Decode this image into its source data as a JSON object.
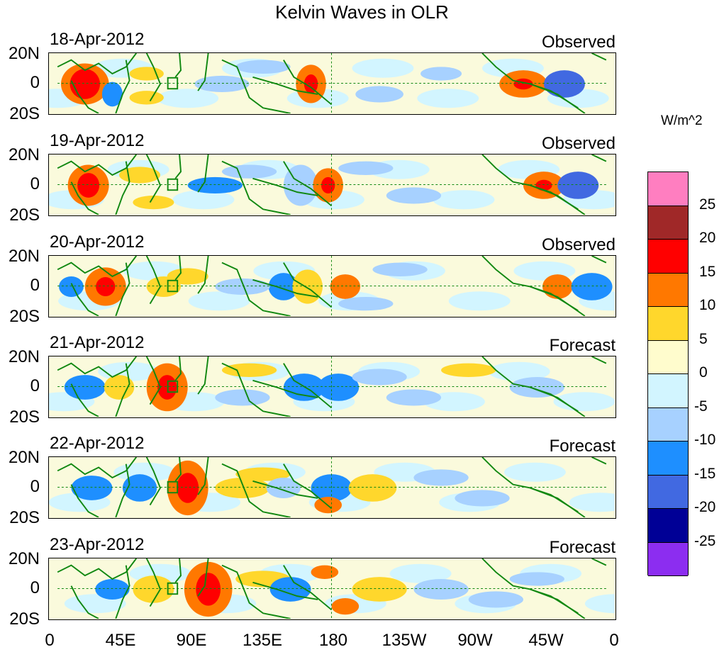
{
  "title": "Kelvin Waves in OLR",
  "units": "W/m^2",
  "lat_labels": [
    "20N",
    "0",
    "20S"
  ],
  "lon_labels": [
    "0",
    "45E",
    "90E",
    "135E",
    "180",
    "135W",
    "90W",
    "45W",
    "0"
  ],
  "colorbar": {
    "levels": [
      "25",
      "20",
      "15",
      "10",
      "5",
      "0",
      "-5",
      "-10",
      "-15",
      "-20",
      "-25"
    ],
    "colors": [
      "#ff7ec0",
      "#a02828",
      "#ff0000",
      "#ff7800",
      "#ffd72c",
      "#fffccd",
      "#d2f5ff",
      "#a7d1ff",
      "#1e8fff",
      "#4169e1",
      "#000096",
      "#8c2df0"
    ]
  },
  "panels": [
    {
      "date": "18-Apr-2012",
      "kind": "Observed"
    },
    {
      "date": "19-Apr-2012",
      "kind": "Observed"
    },
    {
      "date": "20-Apr-2012",
      "kind": "Observed"
    },
    {
      "date": "21-Apr-2012",
      "kind": "Forecast"
    },
    {
      "date": "22-Apr-2012",
      "kind": "Forecast"
    },
    {
      "date": "23-Apr-2012",
      "kind": "Forecast"
    }
  ]
}
